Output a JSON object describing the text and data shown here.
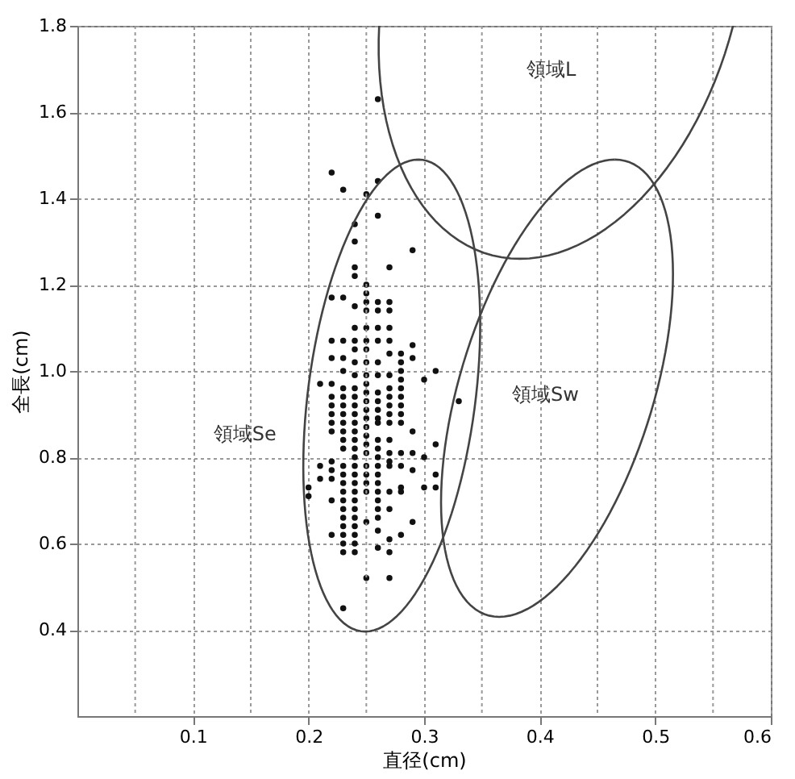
{
  "chart_data": {
    "type": "scatter",
    "xlabel": "直径(cm)",
    "ylabel": "全長(cm)",
    "xlim": [
      0,
      0.6
    ],
    "ylim": [
      0.2,
      1.8
    ],
    "xticks": [
      {
        "value": 0.05,
        "label": null
      },
      0.1,
      {
        "value": 0.15,
        "label": null
      },
      0.2,
      {
        "value": 0.25,
        "label": null
      },
      0.3,
      {
        "value": 0.35,
        "label": null
      },
      0.4,
      {
        "value": 0.45,
        "label": null
      },
      0.5,
      {
        "value": 0.55,
        "label": null
      },
      0.6
    ],
    "yticks": [
      {
        "value": 0.4,
        "label": "0.4"
      },
      {
        "value": 0.6,
        "label": "0.6"
      },
      {
        "value": 0.8,
        "label": "0.8"
      },
      {
        "value": 1.0,
        "label": "1.0"
      },
      {
        "value": 1.2,
        "label": "1.2"
      },
      {
        "value": 1.4,
        "label": "1.4"
      },
      {
        "value": 1.6,
        "label": "1.6"
      },
      {
        "value": 1.8,
        "label": "1.8"
      }
    ],
    "grid": true,
    "series": [
      {
        "color": "#111111",
        "marker": "circle",
        "x": [
          0.2,
          0.2,
          0.21,
          0.21,
          0.21,
          0.22,
          0.22,
          0.22,
          0.22,
          0.22,
          0.22,
          0.22,
          0.22,
          0.22,
          0.22,
          0.22,
          0.22,
          0.22,
          0.22,
          0.22,
          0.23,
          0.23,
          0.23,
          0.23,
          0.23,
          0.23,
          0.23,
          0.23,
          0.23,
          0.23,
          0.23,
          0.23,
          0.23,
          0.23,
          0.23,
          0.23,
          0.23,
          0.23,
          0.23,
          0.23,
          0.23,
          0.23,
          0.23,
          0.23,
          0.23,
          0.24,
          0.24,
          0.24,
          0.24,
          0.24,
          0.24,
          0.24,
          0.24,
          0.24,
          0.24,
          0.24,
          0.24,
          0.24,
          0.24,
          0.24,
          0.24,
          0.24,
          0.24,
          0.24,
          0.24,
          0.24,
          0.24,
          0.24,
          0.24,
          0.24,
          0.24,
          0.24,
          0.24,
          0.24,
          0.24,
          0.25,
          0.25,
          0.25,
          0.25,
          0.25,
          0.25,
          0.25,
          0.25,
          0.25,
          0.25,
          0.25,
          0.25,
          0.25,
          0.25,
          0.25,
          0.25,
          0.25,
          0.25,
          0.25,
          0.25,
          0.25,
          0.25,
          0.25,
          0.25,
          0.25,
          0.26,
          0.26,
          0.26,
          0.26,
          0.26,
          0.26,
          0.26,
          0.26,
          0.26,
          0.26,
          0.26,
          0.26,
          0.26,
          0.26,
          0.26,
          0.26,
          0.26,
          0.26,
          0.26,
          0.26,
          0.26,
          0.26,
          0.26,
          0.26,
          0.26,
          0.26,
          0.27,
          0.27,
          0.27,
          0.27,
          0.27,
          0.27,
          0.27,
          0.27,
          0.27,
          0.27,
          0.27,
          0.27,
          0.27,
          0.27,
          0.27,
          0.27,
          0.27,
          0.27,
          0.27,
          0.27,
          0.27,
          0.28,
          0.28,
          0.28,
          0.28,
          0.28,
          0.28,
          0.28,
          0.28,
          0.28,
          0.28,
          0.28,
          0.28,
          0.28,
          0.28,
          0.29,
          0.29,
          0.29,
          0.29,
          0.29,
          0.29,
          0.29,
          0.3,
          0.3,
          0.3,
          0.31,
          0.31,
          0.31,
          0.31,
          0.33
        ],
        "values": [
          0.73,
          0.71,
          0.97,
          0.78,
          0.75,
          1.46,
          1.17,
          1.07,
          1.03,
          0.97,
          0.94,
          0.92,
          0.9,
          0.88,
          0.86,
          0.79,
          0.77,
          0.75,
          0.7,
          0.62,
          1.42,
          1.17,
          1.07,
          1.03,
          1.0,
          0.96,
          0.94,
          0.92,
          0.9,
          0.88,
          0.86,
          0.84,
          0.82,
          0.78,
          0.76,
          0.74,
          0.72,
          0.7,
          0.68,
          0.66,
          0.64,
          0.62,
          0.6,
          0.58,
          0.45,
          1.34,
          1.3,
          1.24,
          1.22,
          1.15,
          1.1,
          1.07,
          1.05,
          1.02,
          0.99,
          0.96,
          0.94,
          0.92,
          0.9,
          0.88,
          0.86,
          0.84,
          0.82,
          0.8,
          0.78,
          0.76,
          0.74,
          0.72,
          0.7,
          0.68,
          0.66,
          0.64,
          0.62,
          0.6,
          0.58,
          1.41,
          1.2,
          1.18,
          1.16,
          1.14,
          1.1,
          1.07,
          1.05,
          1.02,
          0.99,
          0.97,
          0.95,
          0.93,
          0.91,
          0.89,
          0.87,
          0.85,
          0.83,
          0.81,
          0.78,
          0.76,
          0.74,
          0.72,
          0.65,
          0.52,
          1.63,
          1.44,
          1.36,
          1.16,
          1.14,
          1.1,
          1.07,
          1.02,
          0.99,
          0.95,
          0.93,
          0.91,
          0.89,
          0.88,
          0.84,
          0.82,
          0.8,
          0.78,
          0.76,
          0.74,
          0.72,
          0.7,
          0.68,
          0.66,
          0.63,
          0.59,
          1.24,
          1.16,
          1.14,
          1.1,
          1.07,
          1.04,
          0.99,
          0.96,
          0.94,
          0.92,
          0.9,
          0.88,
          0.84,
          0.81,
          0.79,
          0.78,
          0.72,
          0.68,
          0.61,
          0.58,
          0.52,
          1.04,
          1.02,
          1.0,
          0.98,
          0.96,
          0.94,
          0.92,
          0.9,
          0.88,
          0.81,
          0.78,
          0.73,
          0.72,
          0.62,
          1.28,
          1.06,
          1.03,
          0.86,
          0.81,
          0.77,
          0.65,
          0.98,
          0.8,
          0.73,
          1.0,
          0.83,
          0.76,
          0.73,
          0.93
        ]
      }
    ],
    "annotations": [
      "領域L",
      "領域Se",
      "領域Sw"
    ]
  }
}
